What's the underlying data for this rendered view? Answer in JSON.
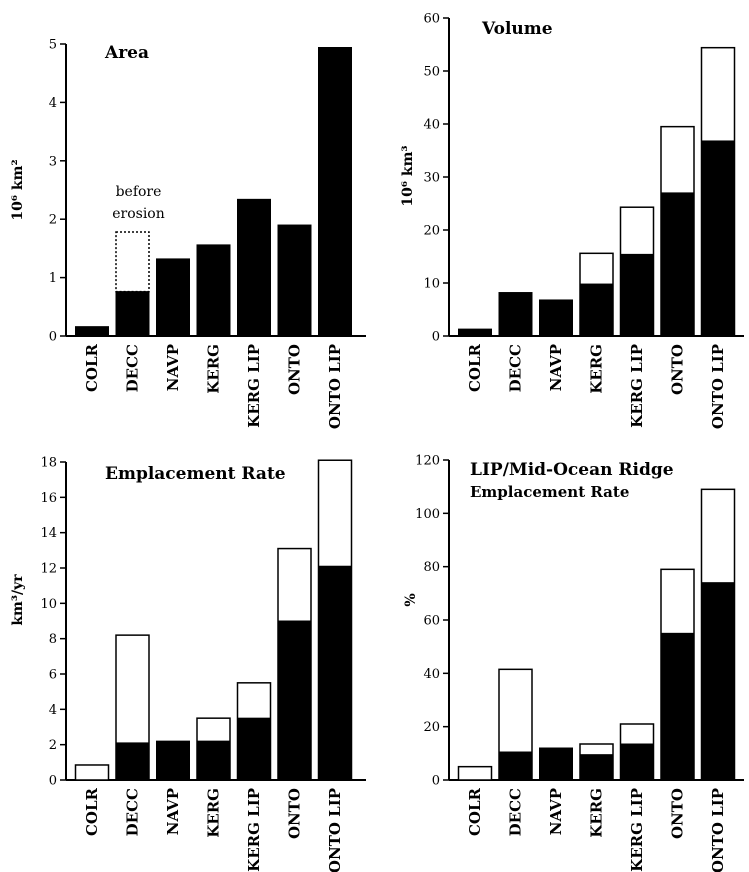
{
  "colors": {
    "solid": "#000000",
    "open": "#ffffff",
    "axis": "#000000"
  },
  "chart_data": [
    {
      "type": "bar",
      "title": "Area",
      "subtitle": "",
      "ylabel": "10⁶ km²",
      "ylim": [
        0,
        5
      ],
      "yticks": [
        0,
        1,
        2,
        3,
        4,
        5
      ],
      "categories": [
        "COLR",
        "DECC",
        "NAVP",
        "KERG",
        "KERG LIP",
        "ONTO",
        "ONTO LIP"
      ],
      "series": [
        {
          "values": [
            0.16,
            0.76,
            1.32,
            1.56,
            2.34,
            1.9,
            4.94
          ]
        }
      ],
      "annotation": {
        "lines": [
          "before",
          "erosion"
        ],
        "category": "DECC",
        "dotted_top": 1.78
      }
    },
    {
      "type": "bar",
      "title": "Volume",
      "subtitle": "",
      "ylabel": "10⁶ km³",
      "ylim": [
        0,
        60
      ],
      "yticks": [
        0,
        10,
        20,
        30,
        40,
        50,
        60
      ],
      "categories": [
        "COLR",
        "DECC",
        "NAVP",
        "KERG",
        "KERG LIP",
        "ONTO",
        "ONTO LIP"
      ],
      "series": [
        {
          "values": [
            1.3,
            8.2,
            6.8,
            9.8,
            15.4,
            27.0,
            36.8
          ]
        },
        {
          "values": [
            1.3,
            8.2,
            6.8,
            15.6,
            24.3,
            39.5,
            54.4
          ]
        }
      ]
    },
    {
      "type": "bar",
      "title": "Emplacement Rate",
      "subtitle": "",
      "ylabel": "km³/yr",
      "ylim": [
        0,
        18
      ],
      "yticks": [
        0,
        2,
        4,
        6,
        8,
        10,
        12,
        14,
        16,
        18
      ],
      "categories": [
        "COLR",
        "DECC",
        "NAVP",
        "KERG",
        "KERG LIP",
        "ONTO",
        "ONTO LIP"
      ],
      "series": [
        {
          "values": [
            0,
            2.1,
            2.2,
            2.2,
            3.5,
            9.0,
            12.1
          ]
        },
        {
          "values": [
            0.85,
            8.2,
            2.2,
            3.5,
            5.5,
            13.1,
            18.1
          ]
        }
      ]
    },
    {
      "type": "bar",
      "title": "LIP/Mid-Ocean Ridge",
      "subtitle": "Emplacement Rate",
      "ylabel": "%",
      "ylim": [
        0,
        120
      ],
      "yticks": [
        0,
        20,
        40,
        60,
        80,
        100,
        120
      ],
      "categories": [
        "COLR",
        "DECC",
        "NAVP",
        "KERG",
        "KERG LIP",
        "ONTO",
        "ONTO LIP"
      ],
      "series": [
        {
          "values": [
            0,
            10.5,
            12.0,
            9.5,
            13.5,
            55.0,
            74.0
          ]
        },
        {
          "values": [
            5.0,
            41.5,
            12.0,
            13.5,
            21.0,
            79.0,
            109.0
          ]
        }
      ]
    }
  ]
}
